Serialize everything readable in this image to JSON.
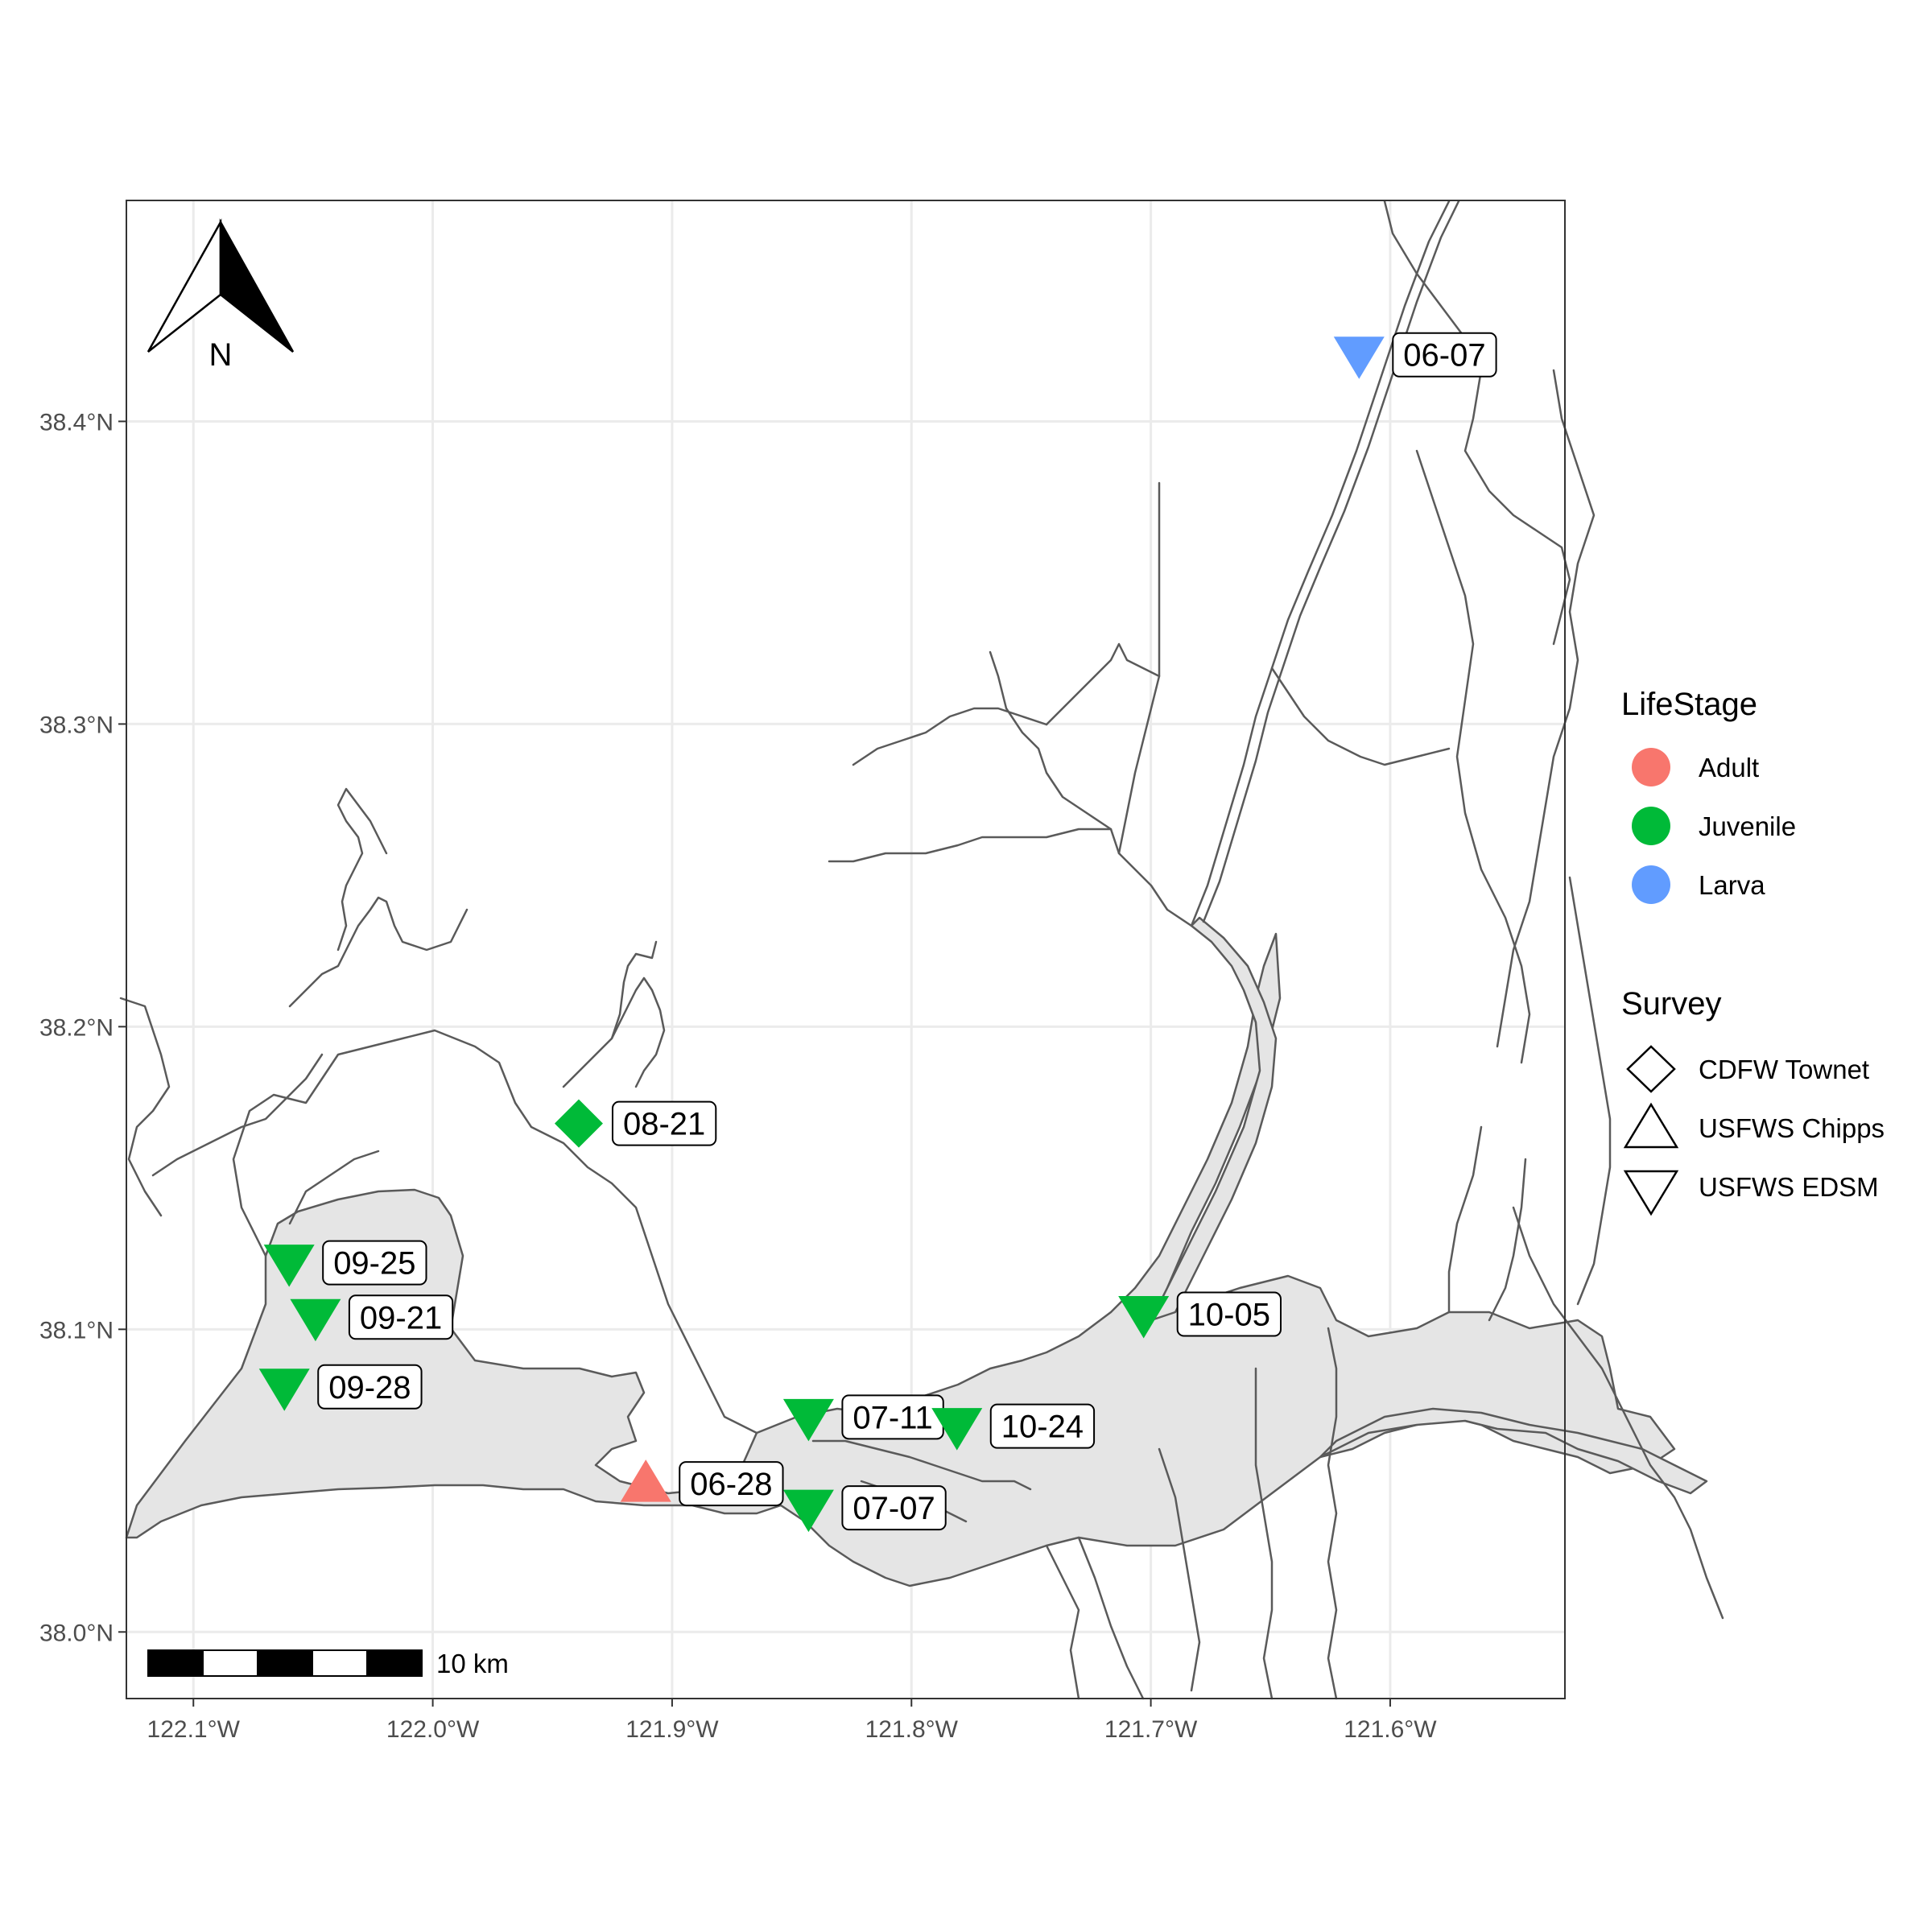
{
  "map": {
    "xlim": [
      -122.128,
      -121.527
    ],
    "ylim": [
      37.978,
      38.473
    ],
    "x_ticks": [
      {
        "value": -122.1,
        "label": "122.1°W"
      },
      {
        "value": -122.0,
        "label": "122.0°W"
      },
      {
        "value": -121.9,
        "label": "121.9°W"
      },
      {
        "value": -121.8,
        "label": "121.8°W"
      },
      {
        "value": -121.7,
        "label": "121.7°W"
      },
      {
        "value": -121.6,
        "label": "121.6°W"
      }
    ],
    "y_ticks": [
      {
        "value": 38.0,
        "label": "38.0°N"
      },
      {
        "value": 38.1,
        "label": "38.1°N"
      },
      {
        "value": 38.2,
        "label": "38.2°N"
      },
      {
        "value": 38.3,
        "label": "38.3°N"
      },
      {
        "value": 38.4,
        "label": "38.4°N"
      }
    ],
    "grid": true,
    "north_arrow_label": "N",
    "scale_bar_label": "10 km",
    "points": [
      {
        "label": "06-07",
        "lon": -121.613,
        "lat": 38.422,
        "life_stage": "Larva",
        "survey": "USFWS EDSM"
      },
      {
        "label": "08-21",
        "lon": -121.939,
        "lat": 38.168,
        "life_stage": "Juvenile",
        "survey": "CDFW Townet"
      },
      {
        "label": "09-25",
        "lon": -122.06,
        "lat": 38.122,
        "life_stage": "Juvenile",
        "survey": "USFWS EDSM"
      },
      {
        "label": "09-21",
        "lon": -122.049,
        "lat": 38.104,
        "life_stage": "Juvenile",
        "survey": "USFWS EDSM"
      },
      {
        "label": "09-28",
        "lon": -122.062,
        "lat": 38.081,
        "life_stage": "Juvenile",
        "survey": "USFWS EDSM"
      },
      {
        "label": "10-05",
        "lon": -121.703,
        "lat": 38.105,
        "life_stage": "Juvenile",
        "survey": "USFWS EDSM"
      },
      {
        "label": "07-11",
        "lon": -121.843,
        "lat": 38.071,
        "life_stage": "Juvenile",
        "survey": "USFWS EDSM"
      },
      {
        "label": "10-24",
        "lon": -121.781,
        "lat": 38.068,
        "life_stage": "Juvenile",
        "survey": "USFWS EDSM"
      },
      {
        "label": "06-28",
        "lon": -121.911,
        "lat": 38.049,
        "life_stage": "Adult",
        "survey": "USFWS Chipps"
      },
      {
        "label": "07-07",
        "lon": -121.843,
        "lat": 38.041,
        "life_stage": "Juvenile",
        "survey": "USFWS EDSM"
      }
    ]
  },
  "legend": {
    "lifestage_title": "LifeStage",
    "lifestage": [
      {
        "name": "Adult",
        "color": "#F8766D"
      },
      {
        "name": "Juvenile",
        "color": "#00BA38"
      },
      {
        "name": "Larva",
        "color": "#619CFF"
      }
    ],
    "survey_title": "Survey",
    "survey": [
      {
        "name": "CDFW Townet",
        "shape": "diamond-icon"
      },
      {
        "name": "USFWS Chipps",
        "shape": "triangle-up-icon"
      },
      {
        "name": "USFWS EDSM",
        "shape": "triangle-down-icon"
      }
    ]
  },
  "colors": {
    "panel_border": "#333333",
    "grid": "#ebebeb",
    "water_fill": "#e5e5e5",
    "shoreline": "#5a5a5a"
  }
}
